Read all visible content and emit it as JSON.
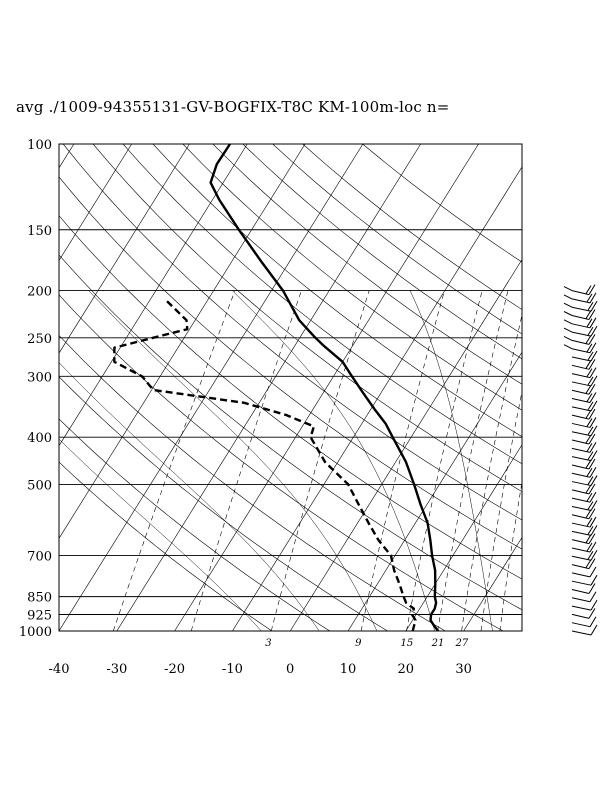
{
  "title": "avg ./1009-94355131-GV-BOGFIX-T8C KM-100m-loc n=",
  "chart_data": {
    "type": "skew-t log-p sounding",
    "pressure_axis": {
      "unit": "hPa",
      "ticks": [
        100,
        150,
        200,
        250,
        300,
        400,
        500,
        700,
        850,
        925,
        1000
      ],
      "range": [
        1000,
        100
      ],
      "scale": "log"
    },
    "temperature_axis": {
      "unit": "°C",
      "ticks": [
        -40,
        -30,
        -20,
        -10,
        0,
        10,
        20,
        30
      ],
      "range": [
        -40,
        40
      ]
    },
    "mixing_ratio_labels": [
      "3",
      "9",
      "15",
      "21",
      "27"
    ],
    "series": [
      {
        "variable": "temperature",
        "style": "solid",
        "points": [
          [
            1000,
            25.6
          ],
          [
            975,
            24.3
          ],
          [
            950,
            23.1
          ],
          [
            925,
            22.6
          ],
          [
            900,
            22.6
          ],
          [
            875,
            22.2
          ],
          [
            850,
            21.3
          ],
          [
            800,
            20.0
          ],
          [
            750,
            18.5
          ],
          [
            700,
            16.4
          ],
          [
            650,
            14.4
          ],
          [
            600,
            12.1
          ],
          [
            550,
            8.9
          ],
          [
            500,
            5.6
          ],
          [
            450,
            1.8
          ],
          [
            400,
            -3.2
          ],
          [
            375,
            -5.9
          ],
          [
            350,
            -9.4
          ],
          [
            325,
            -13.0
          ],
          [
            300,
            -16.8
          ],
          [
            280,
            -20.0
          ],
          [
            260,
            -24.9
          ],
          [
            250,
            -27.3
          ],
          [
            230,
            -32.0
          ],
          [
            200,
            -38.0
          ],
          [
            175,
            -44.7
          ],
          [
            150,
            -52.2
          ],
          [
            130,
            -58.9
          ],
          [
            120,
            -62.2
          ],
          [
            110,
            -63.1
          ],
          [
            100,
            -63.0
          ]
        ]
      },
      {
        "variable": "dewpoint",
        "style": "dashed",
        "points": [
          [
            1000,
            21.2
          ],
          [
            950,
            20.5
          ],
          [
            925,
            19.3
          ],
          [
            900,
            19.0
          ],
          [
            875,
            17.0
          ],
          [
            850,
            15.9
          ],
          [
            800,
            13.8
          ],
          [
            750,
            11.4
          ],
          [
            700,
            9.3
          ],
          [
            650,
            5.4
          ],
          [
            600,
            1.9
          ],
          [
            550,
            -1.8
          ],
          [
            500,
            -5.8
          ],
          [
            450,
            -12.2
          ],
          [
            400,
            -17.4
          ],
          [
            380,
            -18.0
          ],
          [
            360,
            -24.1
          ],
          [
            340,
            -32.6
          ],
          [
            320,
            -49.7
          ],
          [
            300,
            -53.1
          ],
          [
            280,
            -59.5
          ],
          [
            262,
            -61.0
          ],
          [
            250,
            -55.4
          ],
          [
            240,
            -50.4
          ],
          [
            230,
            -51.5
          ],
          [
            210,
            -57.0
          ]
        ]
      }
    ],
    "wind_barbs": {
      "present": true,
      "pressure_range": [
        1000,
        200
      ],
      "count": 42
    }
  }
}
